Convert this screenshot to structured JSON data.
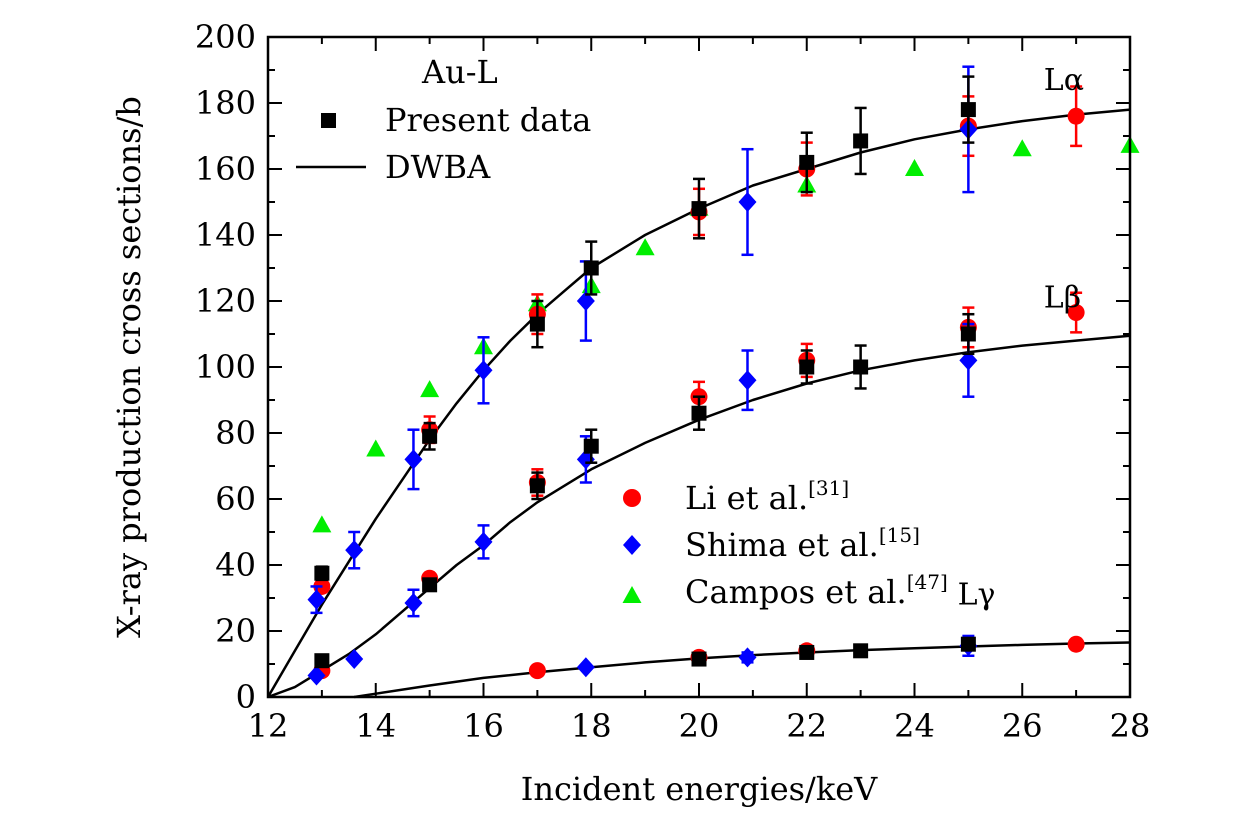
{
  "chart_data": {
    "type": "scatter",
    "xlabel": "Incident energies/keV",
    "ylabel": "X-ray production cross sections/b",
    "xlim": [
      12,
      28
    ],
    "ylim": [
      0,
      200
    ],
    "xticks": [
      12,
      14,
      16,
      18,
      20,
      22,
      24,
      26,
      28
    ],
    "yticks": [
      0,
      20,
      40,
      60,
      80,
      100,
      120,
      140,
      160,
      180,
      200
    ],
    "legend_top_title": "Au-L",
    "legend_top": [
      {
        "label": "Present data",
        "marker": "square",
        "color": "#000000"
      },
      {
        "label": "DWBA",
        "marker": "line",
        "color": "#000000"
      }
    ],
    "legend_bottom": [
      {
        "label": "Li et al.",
        "sup": "[31]",
        "marker": "circle",
        "color": "#ff0000"
      },
      {
        "label": "Shima et al.",
        "sup": "[15]",
        "marker": "diamond",
        "color": "#0000ff"
      },
      {
        "label": "Campos et al.",
        "sup": "[47]",
        "marker": "triangle",
        "color": "#00ee00"
      }
    ],
    "curve_labels": [
      {
        "text": "Lα",
        "x": 26.4,
        "y": 184
      },
      {
        "text": "Lβ",
        "x": 26.4,
        "y": 118
      },
      {
        "text": "Lγ",
        "x": 24.8,
        "y": 28
      }
    ],
    "dwba_curves": [
      {
        "name": "Lα",
        "x": [
          12,
          12.5,
          13,
          13.5,
          14,
          14.5,
          15,
          15.5,
          16,
          16.5,
          17,
          17.5,
          18,
          19,
          20,
          21,
          22,
          23,
          24,
          25,
          26,
          27,
          28
        ],
        "y": [
          0,
          14,
          28,
          41,
          54,
          66,
          78,
          89,
          99,
          108,
          116,
          123,
          130,
          140,
          148,
          155,
          160,
          165,
          169,
          172,
          174.5,
          176.5,
          178
        ]
      },
      {
        "name": "Lβ",
        "x": [
          12,
          12.5,
          13,
          13.5,
          14,
          14.5,
          15,
          15.5,
          16,
          16.5,
          17,
          17.5,
          18,
          19,
          20,
          21,
          22,
          23,
          24,
          25,
          26,
          27,
          28
        ],
        "y": [
          0,
          3,
          8,
          13,
          19,
          26,
          33,
          40,
          46,
          53,
          59,
          64,
          69,
          77,
          84,
          90,
          95,
          99,
          102,
          104.5,
          106.5,
          108,
          109.5
        ]
      },
      {
        "name": "Lγ",
        "x": [
          13.6,
          14,
          15,
          16,
          17,
          18,
          19,
          20,
          21,
          22,
          23,
          24,
          25,
          26,
          27,
          28
        ],
        "y": [
          0,
          1,
          3.5,
          5.8,
          7.5,
          9,
          10.5,
          11.7,
          12.7,
          13.5,
          14.2,
          14.8,
          15.3,
          15.8,
          16.2,
          16.5
        ]
      }
    ],
    "series": [
      {
        "name": "Present data",
        "marker": "square",
        "color": "#000000",
        "points": [
          {
            "x": 13,
            "y": 37.5,
            "err": 2
          },
          {
            "x": 15,
            "y": 79,
            "err": 4
          },
          {
            "x": 17,
            "y": 113,
            "err": 7
          },
          {
            "x": 18,
            "y": 130,
            "err": 8
          },
          {
            "x": 20,
            "y": 148,
            "err": 9
          },
          {
            "x": 22,
            "y": 162,
            "err": 9
          },
          {
            "x": 23,
            "y": 168.5,
            "err": 10
          },
          {
            "x": 25,
            "y": 178,
            "err": 10
          },
          {
            "x": 13,
            "y": 11,
            "err": 0
          },
          {
            "x": 15,
            "y": 34,
            "err": 0
          },
          {
            "x": 17,
            "y": 64,
            "err": 4
          },
          {
            "x": 18,
            "y": 76,
            "err": 5
          },
          {
            "x": 20,
            "y": 86,
            "err": 5
          },
          {
            "x": 22,
            "y": 100,
            "err": 5
          },
          {
            "x": 23,
            "y": 100,
            "err": 6.5
          },
          {
            "x": 25,
            "y": 110,
            "err": 6
          },
          {
            "x": 20,
            "y": 11.5,
            "err": 0
          },
          {
            "x": 22,
            "y": 13.5,
            "err": 0
          },
          {
            "x": 23,
            "y": 14,
            "err": 0
          },
          {
            "x": 25,
            "y": 16,
            "err": 0
          }
        ]
      },
      {
        "name": "Li et al.",
        "marker": "circle",
        "color": "#ff0000",
        "points": [
          {
            "x": 13,
            "y": 33.5,
            "err": 0
          },
          {
            "x": 15,
            "y": 81,
            "err": 4
          },
          {
            "x": 17,
            "y": 116,
            "err": 6
          },
          {
            "x": 20,
            "y": 147,
            "err": 7
          },
          {
            "x": 22,
            "y": 160,
            "err": 8
          },
          {
            "x": 25,
            "y": 173,
            "err": 9
          },
          {
            "x": 27,
            "y": 176,
            "err": 9
          },
          {
            "x": 13,
            "y": 8,
            "err": 0
          },
          {
            "x": 15,
            "y": 36,
            "err": 0
          },
          {
            "x": 17,
            "y": 65,
            "err": 4
          },
          {
            "x": 20,
            "y": 91,
            "err": 4.5
          },
          {
            "x": 22,
            "y": 102,
            "err": 5
          },
          {
            "x": 25,
            "y": 112,
            "err": 6
          },
          {
            "x": 27,
            "y": 116.5,
            "err": 6
          },
          {
            "x": 17,
            "y": 8,
            "err": 0
          },
          {
            "x": 20,
            "y": 12,
            "err": 0
          },
          {
            "x": 22,
            "y": 14,
            "err": 0
          },
          {
            "x": 27,
            "y": 16,
            "err": 0
          }
        ]
      },
      {
        "name": "Shima et al.",
        "marker": "diamond",
        "color": "#0000ff",
        "points": [
          {
            "x": 12.9,
            "y": 29.5,
            "err": 4
          },
          {
            "x": 13.6,
            "y": 44.5,
            "err": 5.5
          },
          {
            "x": 14.7,
            "y": 72,
            "err": 9
          },
          {
            "x": 16,
            "y": 99,
            "err": 10
          },
          {
            "x": 17.9,
            "y": 120,
            "err": 12
          },
          {
            "x": 20.9,
            "y": 150,
            "err": 16
          },
          {
            "x": 25,
            "y": 172,
            "err": 19
          },
          {
            "x": 12.9,
            "y": 6.5,
            "err": 0
          },
          {
            "x": 13.6,
            "y": 11.5,
            "err": 0
          },
          {
            "x": 14.7,
            "y": 28.5,
            "err": 4
          },
          {
            "x": 16,
            "y": 47,
            "err": 5
          },
          {
            "x": 17.9,
            "y": 72,
            "err": 7
          },
          {
            "x": 20.9,
            "y": 96,
            "err": 9
          },
          {
            "x": 25,
            "y": 102,
            "err": 11
          },
          {
            "x": 17.9,
            "y": 9,
            "err": 0
          },
          {
            "x": 20.9,
            "y": 12,
            "err": 1.5
          },
          {
            "x": 25,
            "y": 15.5,
            "err": 3
          }
        ]
      },
      {
        "name": "Campos et al.",
        "marker": "triangle",
        "color": "#00ee00",
        "points": [
          {
            "x": 13,
            "y": 52
          },
          {
            "x": 14,
            "y": 75
          },
          {
            "x": 15,
            "y": 93
          },
          {
            "x": 16,
            "y": 106
          },
          {
            "x": 17,
            "y": 119
          },
          {
            "x": 18,
            "y": 124.5
          },
          {
            "x": 19,
            "y": 136
          },
          {
            "x": 20,
            "y": 148
          },
          {
            "x": 22,
            "y": 155
          },
          {
            "x": 24,
            "y": 160
          },
          {
            "x": 26,
            "y": 166
          },
          {
            "x": 28,
            "y": 167
          }
        ]
      }
    ]
  }
}
